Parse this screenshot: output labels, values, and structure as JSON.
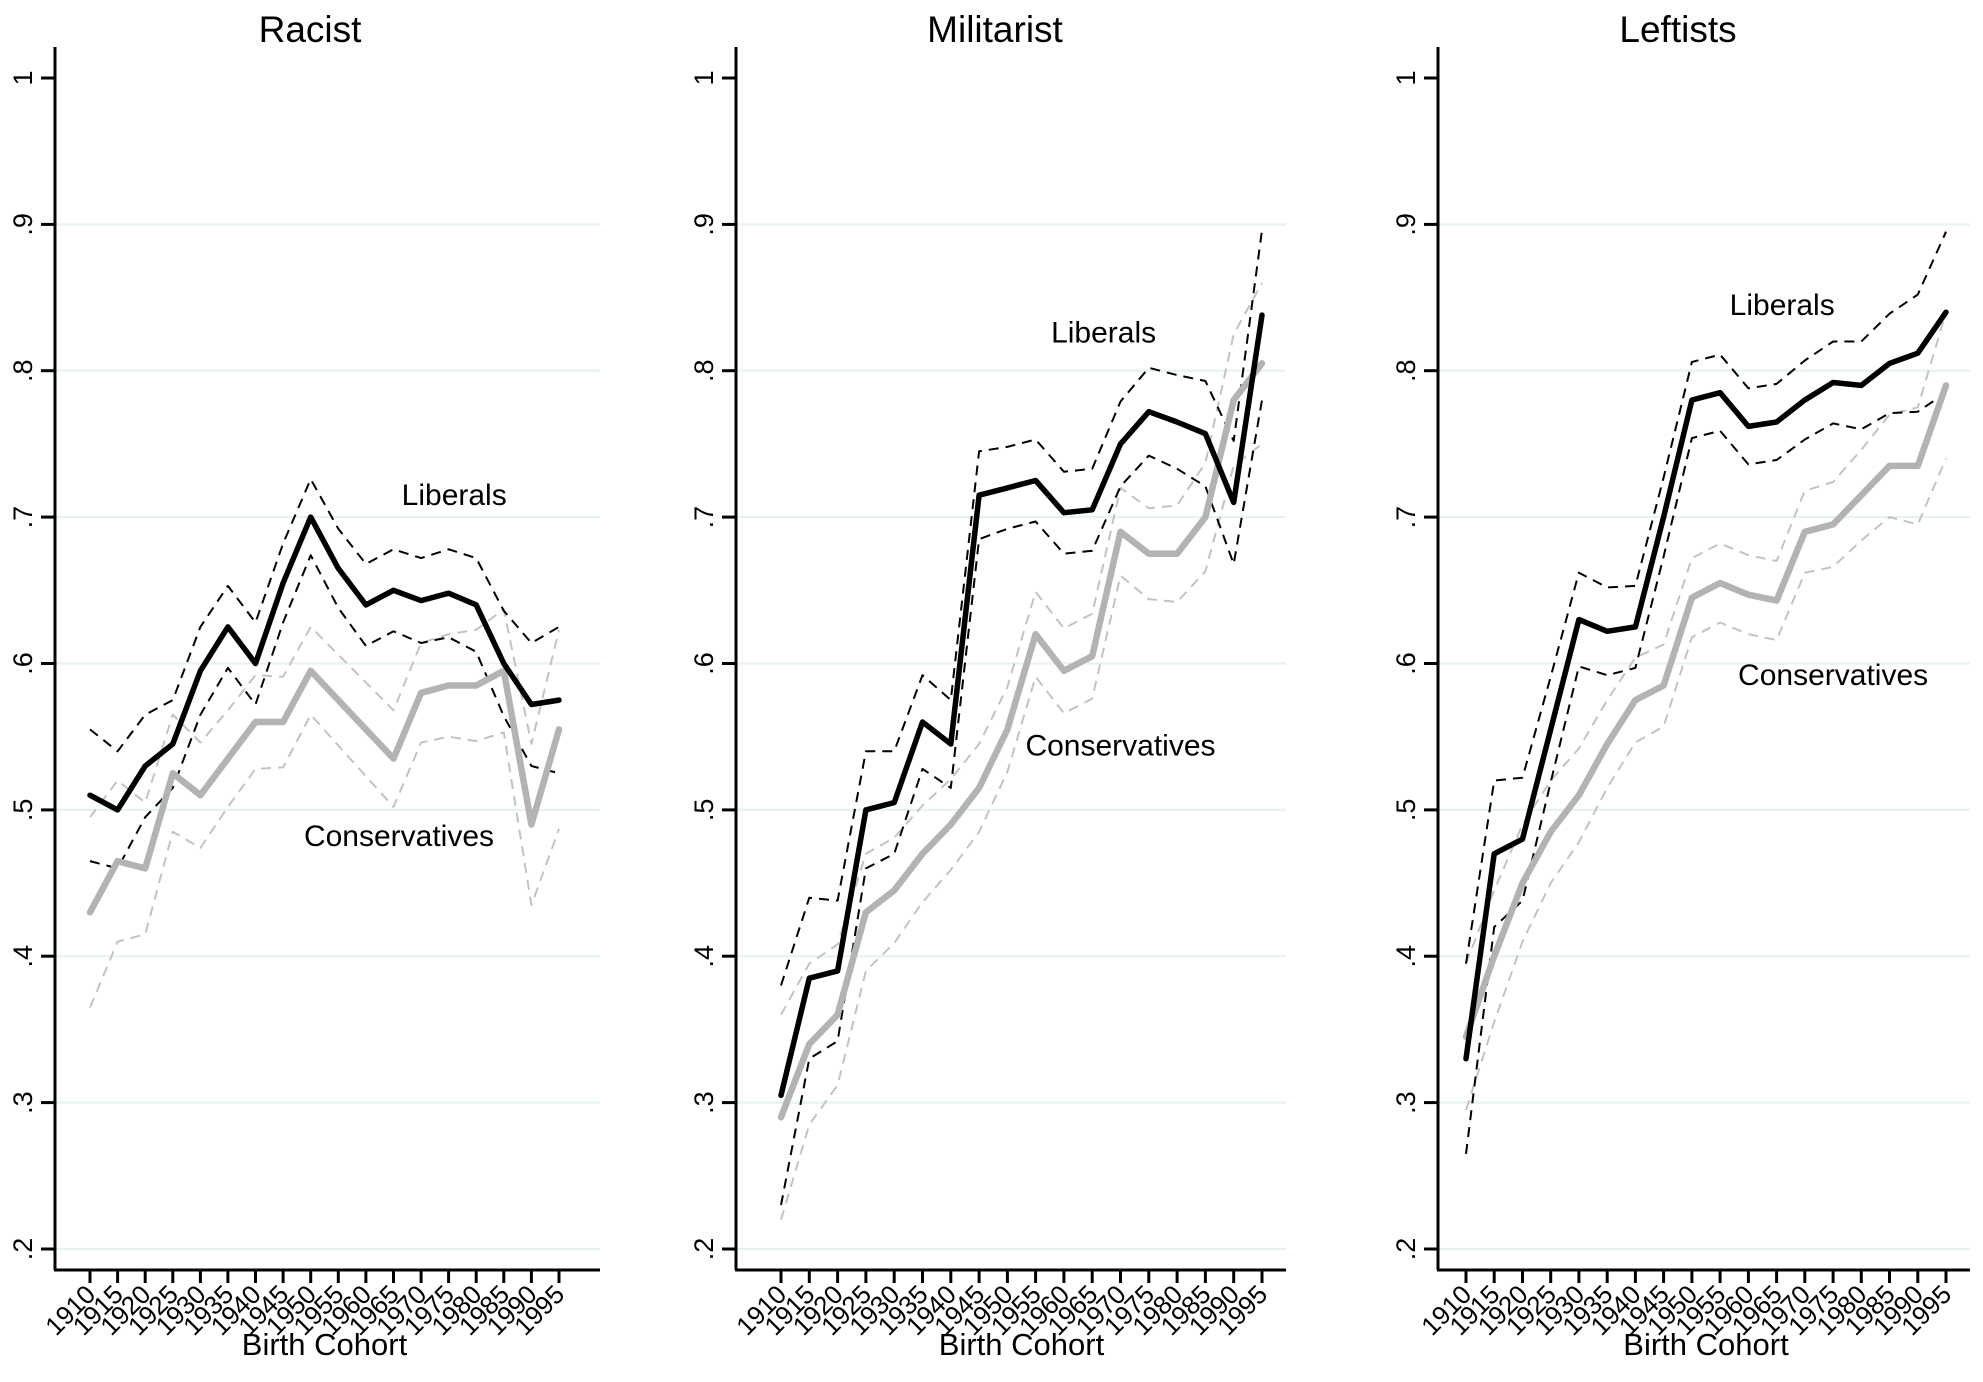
{
  "figure": {
    "background": "#ffffff",
    "text_color": "#000000",
    "axis_color": "#000000",
    "grid_color": "#e9f2f2"
  },
  "chart_data": [
    {
      "type": "line",
      "title": "Racist",
      "xlabel": "Birth Cohort",
      "ylim": [
        0.2,
        1.0
      ],
      "x": [
        1910,
        1915,
        1920,
        1925,
        1930,
        1935,
        1940,
        1945,
        1950,
        1955,
        1960,
        1965,
        1970,
        1975,
        1980,
        1985,
        1990,
        1995
      ],
      "xtick_labels": [
        "1910",
        "1915",
        "1920",
        "1925",
        "1930",
        "1935",
        "1940",
        "1945",
        "1950",
        "1955",
        "1960",
        "1965",
        "1970",
        "1975",
        "1980",
        "1985",
        "1990",
        "1995"
      ],
      "yticks": [
        {
          "value": 1.0,
          "label": "1"
        },
        {
          "value": 0.9,
          "label": ".9"
        },
        {
          "value": 0.8,
          "label": ".8"
        },
        {
          "value": 0.7,
          "label": ".7"
        },
        {
          "value": 0.6,
          "label": ".6"
        },
        {
          "value": 0.5,
          "label": ".5"
        },
        {
          "value": 0.4,
          "label": ".4"
        },
        {
          "value": 0.3,
          "label": ".3"
        },
        {
          "value": 0.2,
          "label": ".2"
        }
      ],
      "gridlines": [
        0.9,
        0.8,
        0.7,
        0.6,
        0.5,
        0.4,
        0.3,
        0.2
      ],
      "legend_position": "inline-text-labels",
      "series": [
        {
          "name": "Liberals",
          "color": "#000000",
          "line_width": 5.5,
          "ci_style": "dashed",
          "ci_color": "#000000",
          "values": [
            0.51,
            0.5,
            0.53,
            0.545,
            0.595,
            0.625,
            0.6,
            0.655,
            0.7,
            0.665,
            0.64,
            0.65,
            0.643,
            0.648,
            0.64,
            0.6,
            0.572,
            0.575
          ],
          "ci_offsets": [
            0.045,
            0.04,
            0.035,
            0.03,
            0.03,
            0.028,
            0.028,
            0.027,
            0.026,
            0.027,
            0.028,
            0.028,
            0.029,
            0.03,
            0.032,
            0.036,
            0.042,
            0.05
          ]
        },
        {
          "name": "Conservatives",
          "color": "#b3b3b3",
          "line_width": 6.5,
          "ci_style": "dashed",
          "ci_color": "#c3c3c3",
          "values": [
            0.43,
            0.465,
            0.46,
            0.525,
            0.51,
            0.535,
            0.56,
            0.56,
            0.595,
            0.575,
            0.555,
            0.535,
            0.58,
            0.585,
            0.585,
            0.595,
            0.49,
            0.555
          ],
          "ci_offsets": [
            0.065,
            0.055,
            0.045,
            0.04,
            0.036,
            0.033,
            0.032,
            0.031,
            0.03,
            0.031,
            0.032,
            0.033,
            0.034,
            0.035,
            0.038,
            0.042,
            0.055,
            0.068
          ]
        }
      ],
      "annotations": [
        {
          "text": "Liberals",
          "x": 1976,
          "y": 0.715
        },
        {
          "text": "Conservatives",
          "x": 1966,
          "y": 0.482
        }
      ]
    },
    {
      "type": "line",
      "title": "Militarist",
      "xlabel": "Birth Cohort",
      "ylim": [
        0.2,
        1.0
      ],
      "x": [
        1910,
        1915,
        1920,
        1925,
        1930,
        1935,
        1940,
        1945,
        1950,
        1955,
        1960,
        1965,
        1970,
        1975,
        1980,
        1985,
        1990,
        1995
      ],
      "xtick_labels": [
        "1910",
        "1915",
        "1920",
        "1925",
        "1930",
        "1935",
        "1940",
        "1945",
        "1950",
        "1955",
        "1960",
        "1965",
        "1970",
        "1975",
        "1980",
        "1985",
        "1990",
        "1995"
      ],
      "yticks": [
        {
          "value": 1.0,
          "label": "1"
        },
        {
          "value": 0.9,
          "label": ".9"
        },
        {
          "value": 0.8,
          "label": ".8"
        },
        {
          "value": 0.7,
          "label": ".7"
        },
        {
          "value": 0.6,
          "label": ".6"
        },
        {
          "value": 0.5,
          "label": ".5"
        },
        {
          "value": 0.4,
          "label": ".4"
        },
        {
          "value": 0.3,
          "label": ".3"
        },
        {
          "value": 0.2,
          "label": ".2"
        }
      ],
      "gridlines": [
        0.9,
        0.8,
        0.7,
        0.6,
        0.5,
        0.4,
        0.3,
        0.2
      ],
      "legend_position": "inline-text-labels",
      "series": [
        {
          "name": "Liberals",
          "color": "#000000",
          "line_width": 5.5,
          "ci_style": "dashed",
          "ci_color": "#000000",
          "values": [
            0.305,
            0.385,
            0.39,
            0.5,
            0.505,
            0.56,
            0.545,
            0.715,
            0.72,
            0.725,
            0.703,
            0.705,
            0.75,
            0.772,
            0.765,
            0.757,
            0.71,
            0.838
          ],
          "ci_offsets": [
            0.075,
            0.055,
            0.048,
            0.04,
            0.035,
            0.032,
            0.03,
            0.03,
            0.028,
            0.028,
            0.028,
            0.028,
            0.029,
            0.03,
            0.032,
            0.036,
            0.042,
            0.058
          ]
        },
        {
          "name": "Conservatives",
          "color": "#b3b3b3",
          "line_width": 6.5,
          "ci_style": "dashed",
          "ci_color": "#c3c3c3",
          "values": [
            0.29,
            0.34,
            0.36,
            0.43,
            0.445,
            0.47,
            0.49,
            0.515,
            0.555,
            0.62,
            0.595,
            0.605,
            0.69,
            0.675,
            0.675,
            0.7,
            0.78,
            0.805
          ],
          "ci_offsets": [
            0.07,
            0.055,
            0.048,
            0.04,
            0.036,
            0.033,
            0.031,
            0.03,
            0.029,
            0.029,
            0.029,
            0.029,
            0.03,
            0.031,
            0.033,
            0.037,
            0.045,
            0.055
          ]
        }
      ],
      "annotations": [
        {
          "text": "Liberals",
          "x": 1967,
          "y": 0.826
        },
        {
          "text": "Conservatives",
          "x": 1970,
          "y": 0.544
        }
      ]
    },
    {
      "type": "line",
      "title": "Leftists",
      "xlabel": "Birth Cohort",
      "ylim": [
        0.2,
        1.0
      ],
      "x": [
        1910,
        1915,
        1920,
        1925,
        1930,
        1935,
        1940,
        1945,
        1950,
        1955,
        1960,
        1965,
        1970,
        1975,
        1980,
        1985,
        1990,
        1995
      ],
      "xtick_labels": [
        "1910",
        "1915",
        "1920",
        "1925",
        "1930",
        "1935",
        "1940",
        "1945",
        "1950",
        "1955",
        "1960",
        "1965",
        "1970",
        "1975",
        "1980",
        "1985",
        "1990",
        "1995"
      ],
      "yticks": [
        {
          "value": 1.0,
          "label": "1"
        },
        {
          "value": 0.9,
          "label": ".9"
        },
        {
          "value": 0.8,
          "label": ".8"
        },
        {
          "value": 0.7,
          "label": ".7"
        },
        {
          "value": 0.6,
          "label": ".6"
        },
        {
          "value": 0.5,
          "label": ".5"
        },
        {
          "value": 0.4,
          "label": ".4"
        },
        {
          "value": 0.3,
          "label": ".3"
        },
        {
          "value": 0.2,
          "label": ".2"
        }
      ],
      "gridlines": [
        0.9,
        0.8,
        0.7,
        0.6,
        0.5,
        0.4,
        0.3,
        0.2
      ],
      "legend_position": "inline-text-labels",
      "series": [
        {
          "name": "Liberals",
          "color": "#000000",
          "line_width": 5.5,
          "ci_style": "dashed",
          "ci_color": "#000000",
          "values": [
            0.33,
            0.47,
            0.48,
            0.555,
            0.63,
            0.622,
            0.625,
            0.7,
            0.78,
            0.785,
            0.762,
            0.765,
            0.78,
            0.792,
            0.79,
            0.805,
            0.812,
            0.84
          ],
          "ci_offsets": [
            0.065,
            0.05,
            0.042,
            0.036,
            0.032,
            0.03,
            0.028,
            0.027,
            0.026,
            0.026,
            0.026,
            0.026,
            0.027,
            0.028,
            0.03,
            0.034,
            0.04,
            0.055
          ]
        },
        {
          "name": "Conservatives",
          "color": "#b3b3b3",
          "line_width": 6.5,
          "ci_style": "dashed",
          "ci_color": "#c3c3c3",
          "values": [
            0.345,
            0.4,
            0.45,
            0.485,
            0.51,
            0.545,
            0.575,
            0.585,
            0.645,
            0.655,
            0.647,
            0.643,
            0.69,
            0.695,
            0.715,
            0.735,
            0.735,
            0.79
          ],
          "ci_offsets": [
            0.05,
            0.045,
            0.04,
            0.035,
            0.032,
            0.03,
            0.029,
            0.028,
            0.027,
            0.027,
            0.027,
            0.027,
            0.028,
            0.029,
            0.031,
            0.035,
            0.04,
            0.05
          ]
        }
      ],
      "annotations": [
        {
          "text": "Liberals",
          "x": 1966,
          "y": 0.845
        },
        {
          "text": "Conservatives",
          "x": 1975,
          "y": 0.592
        }
      ]
    }
  ]
}
